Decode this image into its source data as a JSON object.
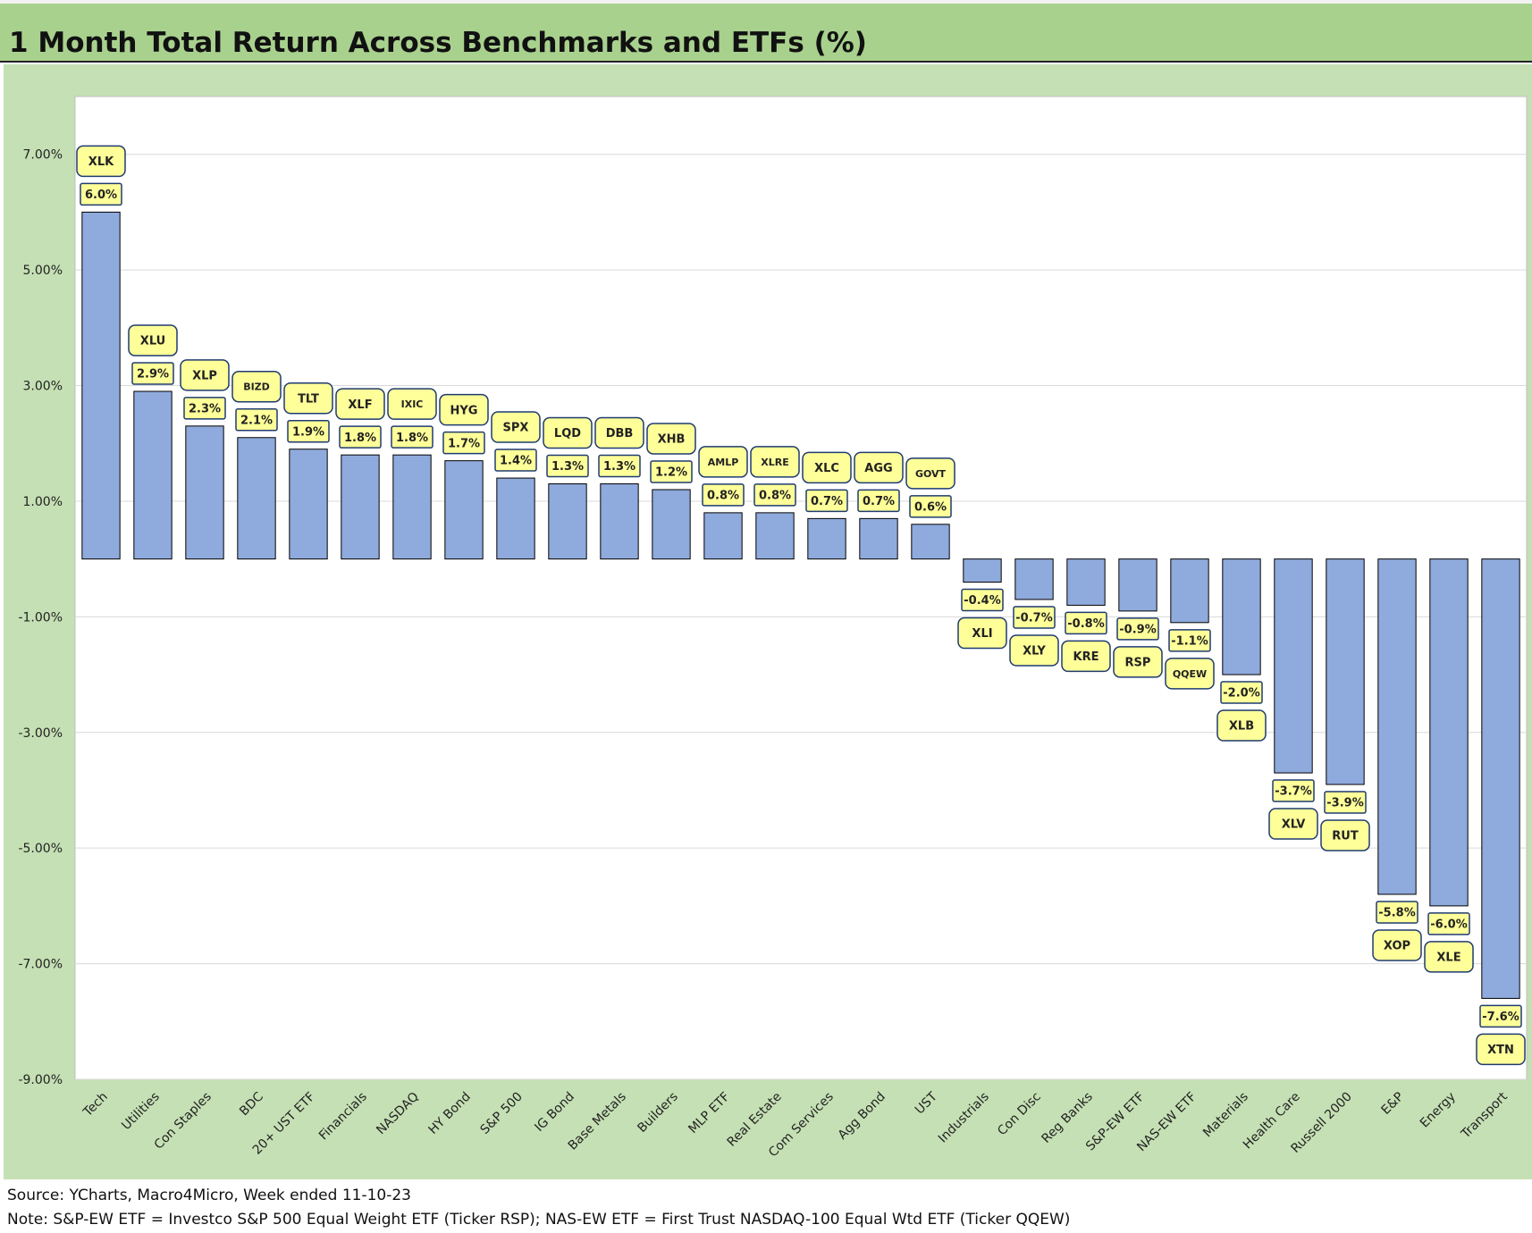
{
  "title": "1 Month Total Return Across Benchmarks and ETFs (%)",
  "notes": {
    "source": "Source: YCharts, Macro4Micro, Week ended 11-10-23",
    "note": "Note: S&P-EW ETF = Investco S&P 500 Equal Weight ETF (Ticker RSP); NAS-EW ETF = First Trust NASDAQ-100 Equal Wtd ETF (Ticker QQEW)"
  },
  "colors": {
    "title_band": "#a9d18e",
    "chart_background": "#c5e0b4",
    "plot_background": "#ffffff",
    "bar_fill": "#8faadc",
    "label_fill": "#ffff99"
  },
  "chart_data": {
    "type": "bar",
    "title": "",
    "xlabel": "",
    "ylabel": "",
    "ylim": [
      -9,
      8
    ],
    "y_ticks": [
      7,
      5,
      3,
      1,
      -1,
      -3,
      -5,
      -7,
      -9
    ],
    "y_tick_labels": [
      "7.00%",
      "5.00%",
      "3.00%",
      "1.00%",
      "-1.00%",
      "-3.00%",
      "-5.00%",
      "-7.00%",
      "-9.00%"
    ],
    "grid": true,
    "categories": [
      "Tech",
      "Utilities",
      "Con Staples",
      "BDC",
      "20+ UST ETF",
      "Financials",
      "NASDAQ",
      "HY Bond",
      "S&P 500",
      "IG Bond",
      "Base Metals",
      "Builders",
      "MLP ETF",
      "Real Estate",
      "Com Services",
      "Agg Bond",
      "UST",
      "Industrials",
      "Con Disc",
      "Reg Banks",
      "S&P-EW ETF",
      "NAS-EW ETF",
      "Materials",
      "Health Care",
      "Russell 2000",
      "E&P",
      "Energy",
      "Transport"
    ],
    "values": [
      6.0,
      2.9,
      2.3,
      2.1,
      1.9,
      1.8,
      1.8,
      1.7,
      1.4,
      1.3,
      1.3,
      1.2,
      0.8,
      0.8,
      0.7,
      0.7,
      0.6,
      -0.4,
      -0.7,
      -0.8,
      -0.9,
      -1.1,
      -2.0,
      -3.7,
      -3.9,
      -5.8,
      -6.0,
      -7.6
    ],
    "value_labels": [
      "6.0%",
      "2.9%",
      "2.3%",
      "2.1%",
      "1.9%",
      "1.8%",
      "1.8%",
      "1.7%",
      "1.4%",
      "1.3%",
      "1.3%",
      "1.2%",
      "0.8%",
      "0.8%",
      "0.7%",
      "0.7%",
      "0.6%",
      "-0.4%",
      "-0.7%",
      "-0.8%",
      "-0.9%",
      "-1.1%",
      "-2.0%",
      "-3.7%",
      "-3.9%",
      "-5.8%",
      "-6.0%",
      "-7.6%"
    ],
    "tickers": [
      "XLK",
      "XLU",
      "XLP",
      "BIZD",
      "TLT",
      "XLF",
      "IXIC",
      "HYG",
      "SPX",
      "LQD",
      "DBB",
      "XHB",
      "AMLP",
      "XLRE",
      "XLC",
      "AGG",
      "GOVT",
      "XLI",
      "XLY",
      "KRE",
      "RSP",
      "QQEW",
      "XLB",
      "XLV",
      "RUT",
      "XOP",
      "XLE",
      "XTN"
    ]
  }
}
